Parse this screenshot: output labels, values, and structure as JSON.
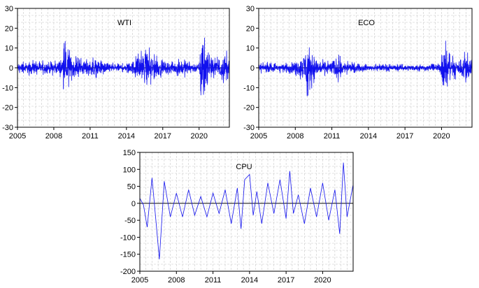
{
  "chart_data": [
    {
      "type": "line",
      "title": "WTI",
      "xlabel": "",
      "ylabel": "",
      "xlim": [
        2005,
        2022.5
      ],
      "ylim": [
        -30,
        30
      ],
      "x_ticks": [
        "2005",
        "2008",
        "2011",
        "2014",
        "2017",
        "2020"
      ],
      "y_ticks": [
        "30",
        "20",
        "10",
        "0",
        "-10",
        "-20",
        "-30"
      ],
      "grid": "dashed",
      "color": "#1010ee",
      "series": [
        {
          "x": [
            2005.0,
            2006.0,
            2007.0,
            2008.0,
            2008.5,
            2008.7,
            2008.9,
            2009.1,
            2009.4,
            2010.0,
            2011.0,
            2011.5,
            2012.0,
            2013.0,
            2014.0,
            2014.8,
            2015.2,
            2015.6,
            2016.0,
            2016.5,
            2017.0,
            2018.0,
            2018.9,
            2019.0,
            2020.0,
            2020.2,
            2020.25,
            2020.3,
            2020.35,
            2020.5,
            2021.0,
            2021.5,
            2022.0,
            2022.5
          ],
          "amp": [
            3,
            4,
            4,
            4,
            5,
            9,
            14,
            12,
            8,
            5,
            5,
            6,
            4,
            3,
            2.5,
            6,
            9,
            11,
            10,
            7,
            4,
            4,
            6,
            4,
            3,
            20,
            29,
            28,
            28,
            14,
            6,
            6,
            10,
            8
          ]
        }
      ]
    },
    {
      "type": "line",
      "title": "ECO",
      "xlabel": "",
      "ylabel": "",
      "xlim": [
        2005,
        2022.5
      ],
      "ylim": [
        -30,
        30
      ],
      "x_ticks": [
        "2005",
        "2008",
        "2011",
        "2014",
        "2017",
        "2020"
      ],
      "y_ticks": [
        "30",
        "20",
        "10",
        "0",
        "-10",
        "-20",
        "-30"
      ],
      "grid": "dashed",
      "color": "#1010ee",
      "series": [
        {
          "x": [
            2005.0,
            2006.0,
            2007.0,
            2008.0,
            2008.6,
            2008.8,
            2009.0,
            2009.3,
            2009.8,
            2010.5,
            2011.0,
            2011.6,
            2012.0,
            2013.0,
            2014.0,
            2015.0,
            2016.0,
            2017.0,
            2018.0,
            2019.0,
            2019.9,
            2020.1,
            2020.3,
            2020.6,
            2021.0,
            2021.5,
            2022.0,
            2022.5
          ],
          "amp": [
            3,
            3,
            3,
            4,
            7,
            14,
            16,
            12,
            6,
            4,
            5,
            8,
            4,
            2.5,
            2,
            2,
            2,
            2,
            2,
            2,
            3,
            13,
            15,
            8,
            6,
            6,
            9,
            8
          ]
        }
      ]
    },
    {
      "type": "line",
      "title": "CPU",
      "xlabel": "",
      "ylabel": "",
      "xlim": [
        2005,
        2022.5
      ],
      "ylim": [
        -200,
        150
      ],
      "x_ticks": [
        "2005",
        "2008",
        "2011",
        "2014",
        "2017",
        "2020"
      ],
      "y_ticks": [
        "150",
        "100",
        "50",
        "0",
        "-50",
        "-100",
        "-150",
        "-200"
      ],
      "grid": "dashed",
      "color": "#1010ee",
      "series": [
        {
          "x": [
            2005.0,
            2005.3,
            2005.6,
            2006.0,
            2006.3,
            2006.6,
            2007.0,
            2007.5,
            2008.0,
            2008.5,
            2009.0,
            2009.5,
            2010.0,
            2010.5,
            2011.0,
            2011.5,
            2012.0,
            2012.5,
            2013.0,
            2013.3,
            2013.6,
            2014.0,
            2014.3,
            2014.6,
            2015.0,
            2015.5,
            2016.0,
            2016.5,
            2017.0,
            2017.3,
            2017.6,
            2018.0,
            2018.5,
            2019.0,
            2019.5,
            2020.0,
            2020.5,
            2021.0,
            2021.4,
            2021.7,
            2022.0,
            2022.5
          ],
          "y": [
            15,
            -5,
            -70,
            75,
            -45,
            -165,
            65,
            -40,
            30,
            -40,
            40,
            -35,
            20,
            -40,
            30,
            -30,
            40,
            -60,
            45,
            -75,
            70,
            85,
            -35,
            35,
            -60,
            60,
            -30,
            70,
            -45,
            95,
            -30,
            25,
            -60,
            45,
            -40,
            60,
            -50,
            40,
            -90,
            120,
            -40,
            55
          ]
        }
      ]
    }
  ]
}
